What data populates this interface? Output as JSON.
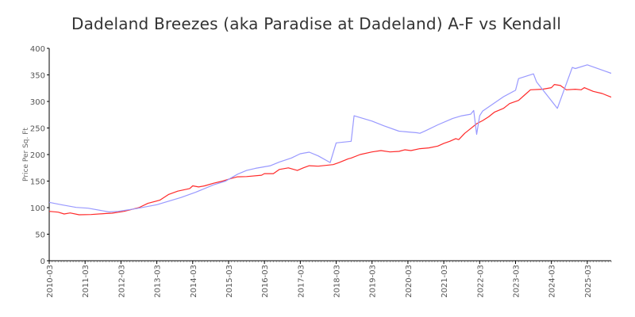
{
  "chart_data": {
    "type": "line",
    "title": "Dadeland Breezes (aka Paradise at Dadeland) A-F vs Kendall",
    "xlabel": "",
    "ylabel": "Price Per Sq. Ft",
    "xlim": [
      "2010-03",
      "2025-11"
    ],
    "ylim": [
      0,
      400
    ],
    "yticks": [
      "0",
      "50",
      "100",
      "150",
      "200",
      "250",
      "300",
      "350",
      "400"
    ],
    "xticks": [
      "2010-03",
      "2011-03",
      "2012-03",
      "2013-03",
      "2014-03",
      "2015-03",
      "2016-03",
      "2017-03",
      "2018-03",
      "2019-03",
      "2020-03",
      "2021-03",
      "2022-03",
      "2023-03",
      "2024-03",
      "2025-03"
    ],
    "grid": false,
    "legend": "none",
    "series": [
      {
        "color": "#ff2a2a",
        "points": [
          [
            "2010-03",
            93
          ],
          [
            "2010-06",
            91.5
          ],
          [
            "2010-08",
            88
          ],
          [
            "2010-10",
            90
          ],
          [
            "2011-01",
            86.5
          ],
          [
            "2011-05",
            87
          ],
          [
            "2011-10",
            89
          ],
          [
            "2011-12",
            89.5
          ],
          [
            "2012-04",
            93
          ],
          [
            "2012-09",
            100
          ],
          [
            "2012-12",
            108
          ],
          [
            "2013-04",
            114
          ],
          [
            "2013-07",
            125
          ],
          [
            "2013-10",
            131
          ],
          [
            "2014-02",
            136
          ],
          [
            "2014-03",
            141
          ],
          [
            "2014-05",
            139
          ],
          [
            "2014-07",
            141
          ],
          [
            "2014-10",
            146
          ],
          [
            "2015-01",
            150
          ],
          [
            "2015-04",
            155
          ],
          [
            "2015-06",
            158
          ],
          [
            "2015-09",
            158.5
          ],
          [
            "2016-02",
            161
          ],
          [
            "2016-03",
            164
          ],
          [
            "2016-06",
            164
          ],
          [
            "2016-08",
            172
          ],
          [
            "2016-11",
            175
          ],
          [
            "2017-02",
            170
          ],
          [
            "2017-04",
            175
          ],
          [
            "2017-06",
            179
          ],
          [
            "2017-09",
            178
          ],
          [
            "2018-02",
            181
          ],
          [
            "2018-04",
            185
          ],
          [
            "2018-07",
            192
          ],
          [
            "2018-08",
            193.5
          ],
          [
            "2018-11",
            200
          ],
          [
            "2019-03",
            205
          ],
          [
            "2019-06",
            207.5
          ],
          [
            "2019-09",
            205
          ],
          [
            "2019-12",
            206
          ],
          [
            "2020-02",
            209
          ],
          [
            "2020-04",
            207.5
          ],
          [
            "2020-07",
            211
          ],
          [
            "2020-10",
            212.5
          ],
          [
            "2021-01",
            216
          ],
          [
            "2021-03",
            221
          ],
          [
            "2021-05",
            225
          ],
          [
            "2021-07",
            230
          ],
          [
            "2021-08",
            228
          ],
          [
            "2021-10",
            240
          ],
          [
            "2021-12",
            249
          ],
          [
            "2022-02",
            258
          ],
          [
            "2022-04",
            264
          ],
          [
            "2022-06",
            271
          ],
          [
            "2022-08",
            280
          ],
          [
            "2022-11",
            287
          ],
          [
            "2023-01",
            296
          ],
          [
            "2023-04",
            302
          ],
          [
            "2023-06",
            312
          ],
          [
            "2023-08",
            322
          ],
          [
            "2023-12",
            323
          ],
          [
            "2024-03",
            326
          ],
          [
            "2024-04",
            332
          ],
          [
            "2024-06",
            330
          ],
          [
            "2024-08",
            322
          ],
          [
            "2024-11",
            323
          ],
          [
            "2025-01",
            322
          ],
          [
            "2025-02",
            326
          ],
          [
            "2025-05",
            319
          ],
          [
            "2025-08",
            315
          ],
          [
            "2025-11",
            308
          ]
        ]
      },
      {
        "color": "#9999ff",
        "points": [
          [
            "2010-03",
            110
          ],
          [
            "2010-07",
            105.5
          ],
          [
            "2010-12",
            100.5
          ],
          [
            "2011-04",
            99
          ],
          [
            "2011-11",
            92
          ],
          [
            "2012-02",
            93
          ],
          [
            "2012-08",
            98
          ],
          [
            "2013-03",
            105.5
          ],
          [
            "2013-11",
            119
          ],
          [
            "2014-04",
            129
          ],
          [
            "2014-10",
            143
          ],
          [
            "2015-02",
            150
          ],
          [
            "2015-06",
            163
          ],
          [
            "2015-09",
            170
          ],
          [
            "2015-12",
            174
          ],
          [
            "2016-05",
            179
          ],
          [
            "2016-08",
            186
          ],
          [
            "2016-12",
            193.5
          ],
          [
            "2017-03",
            201.5
          ],
          [
            "2017-06",
            204.5
          ],
          [
            "2017-09",
            197.5
          ],
          [
            "2018-01",
            185
          ],
          [
            "2018-03",
            222
          ],
          [
            "2018-08",
            225
          ],
          [
            "2018-09",
            273
          ],
          [
            "2019-03",
            263
          ],
          [
            "2019-07",
            254
          ],
          [
            "2019-12",
            244
          ],
          [
            "2020-06",
            241
          ],
          [
            "2020-07",
            240
          ],
          [
            "2020-09",
            245
          ],
          [
            "2021-01",
            256
          ],
          [
            "2021-06",
            268
          ],
          [
            "2021-09",
            273
          ],
          [
            "2021-12",
            276
          ],
          [
            "2022-01",
            283
          ],
          [
            "2022-02",
            238
          ],
          [
            "2022-03",
            273
          ],
          [
            "2022-04",
            282
          ],
          [
            "2022-11",
            309
          ],
          [
            "2023-03",
            321
          ],
          [
            "2023-04",
            343
          ],
          [
            "2023-09",
            352
          ],
          [
            "2023-10",
            337
          ],
          [
            "2024-05",
            287
          ],
          [
            "2024-10",
            364
          ],
          [
            "2024-11",
            362
          ],
          [
            "2025-03",
            369
          ],
          [
            "2025-11",
            353
          ]
        ]
      }
    ]
  }
}
